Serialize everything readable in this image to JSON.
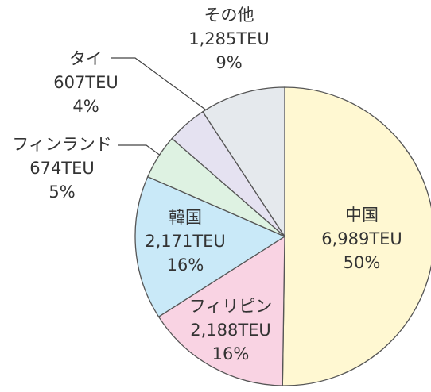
{
  "chart_data": {
    "type": "pie",
    "categories": [
      "中国",
      "フィリピン",
      "韓国",
      "フィンランド",
      "タイ",
      "その他"
    ],
    "values": [
      6989,
      2188,
      2171,
      674,
      607,
      1285
    ],
    "value_labels": [
      "6,989TEU",
      "2,188TEU",
      "2,171TEU",
      "674TEU",
      "607TEU",
      "1,285TEU"
    ],
    "percent_labels": [
      "50%",
      "16%",
      "16%",
      "5%",
      "4%",
      "9%"
    ],
    "colors": [
      "#fff8d2",
      "#f9d3e3",
      "#c9e9f8",
      "#def2e2",
      "#e5e2f1",
      "#e5e9ed"
    ]
  }
}
